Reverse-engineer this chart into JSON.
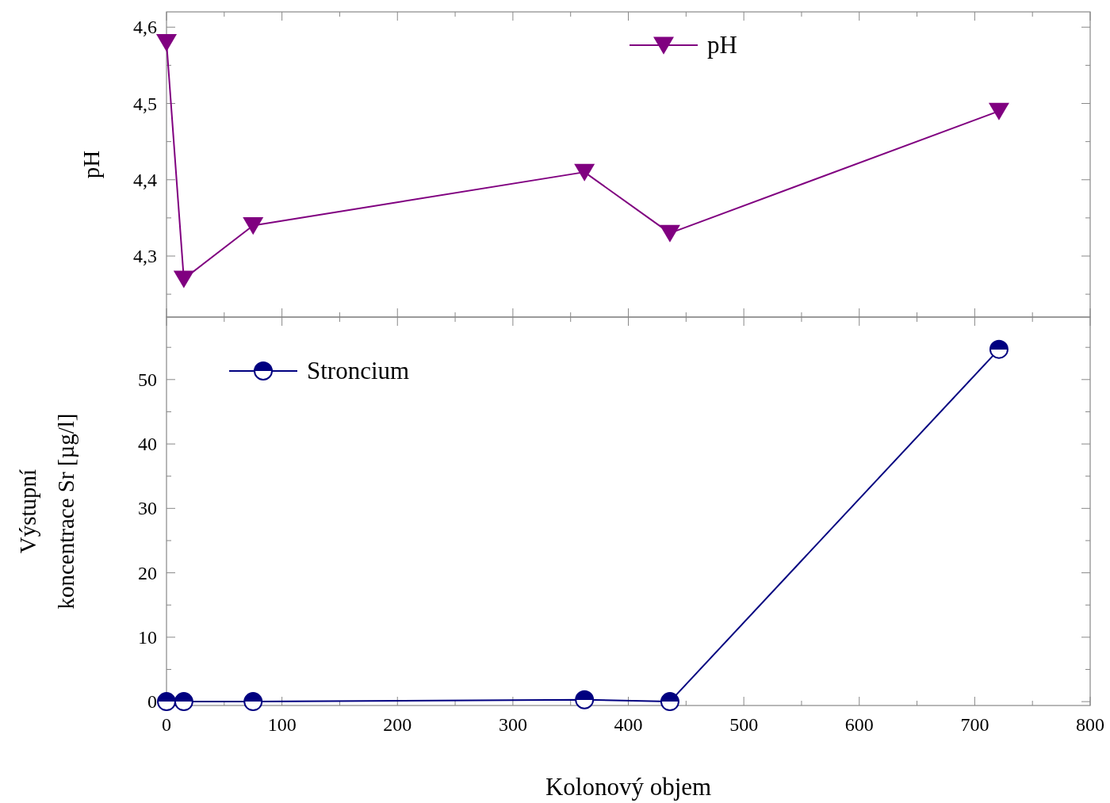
{
  "chart_data": [
    {
      "type": "line",
      "ylabel": "pH",
      "x": [
        0,
        15,
        75,
        362,
        436,
        721
      ],
      "series": [
        {
          "name": "pH",
          "color": "#800080",
          "values": [
            4.58,
            4.27,
            4.34,
            4.41,
            4.33,
            4.49
          ]
        }
      ],
      "xlim": [
        0,
        800
      ],
      "xticks": [
        0,
        {
          "value": 50,
          "label": null
        },
        100,
        {
          "value": 150,
          "label": null
        },
        200,
        {
          "value": 250,
          "label": null
        },
        300,
        {
          "value": 350,
          "label": null
        },
        400,
        {
          "value": 450,
          "label": null
        },
        500,
        {
          "value": 550,
          "label": null
        },
        600,
        {
          "value": 650,
          "label": null
        },
        700,
        {
          "value": 750,
          "label": null
        },
        800
      ],
      "ylim": [
        4.22,
        4.62
      ],
      "yticks": [
        {
          "value": 4.25,
          "label": null
        },
        {
          "value": 4.3,
          "label": "4,3"
        },
        {
          "value": 4.35,
          "label": null
        },
        {
          "value": 4.4,
          "label": "4,4"
        },
        {
          "value": 4.45,
          "label": null
        },
        {
          "value": 4.5,
          "label": "4,5"
        },
        {
          "value": 4.55,
          "label": null
        },
        {
          "value": 4.6,
          "label": "4,6"
        }
      ],
      "tick_labels": "y",
      "marker": "triangle",
      "line_style": "solid",
      "legend": "top",
      "grid": false
    },
    {
      "type": "line",
      "xlabel": "Kolonový objem",
      "ylabel": "Výstupní\nkoncentrace Sr [µg/l]",
      "x": [
        0,
        15,
        75,
        362,
        436,
        721
      ],
      "series": [
        {
          "name": "Stroncium",
          "color": "#000080",
          "values": [
            0,
            0,
            0,
            0.3,
            0,
            54.7
          ]
        }
      ],
      "xlim": [
        0,
        800
      ],
      "xticks": [
        0,
        {
          "value": 50,
          "label": null
        },
        100,
        {
          "value": 150,
          "label": null
        },
        200,
        {
          "value": 250,
          "label": null
        },
        300,
        {
          "value": 350,
          "label": null
        },
        400,
        {
          "value": 450,
          "label": null
        },
        500,
        {
          "value": 550,
          "label": null
        },
        600,
        {
          "value": 650,
          "label": null
        },
        700,
        {
          "value": 750,
          "label": null
        },
        800
      ],
      "ylim": [
        -0.6,
        59.7
      ],
      "yticks": [
        0,
        {
          "value": 5,
          "label": null
        },
        10,
        {
          "value": 15,
          "label": null
        },
        20,
        {
          "value": 25,
          "label": null
        },
        30,
        {
          "value": 35,
          "label": null
        },
        40,
        {
          "value": 45,
          "label": null
        },
        50,
        {
          "value": 55,
          "label": null
        }
      ],
      "marker": "circle",
      "line_style": "solid",
      "legend": "top left",
      "grid": false
    }
  ]
}
